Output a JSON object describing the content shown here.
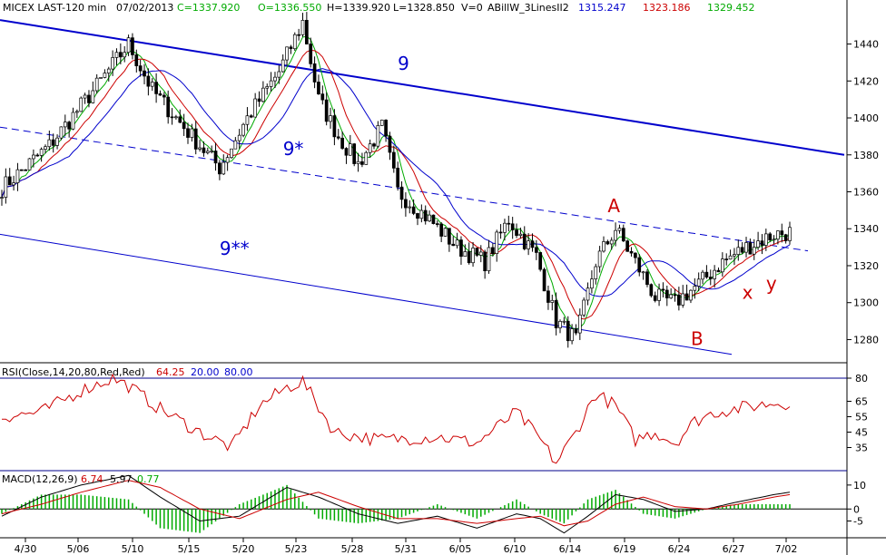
{
  "header": {
    "instrument": "MICEX LAST-120 min",
    "date": "07/02/2013",
    "close": "C=1337.920",
    "open": "O=1336.550",
    "high": "H=1339.920",
    "low": "L=1328.850",
    "volume": "V=0",
    "indicator": "ABillW_3LinesII2",
    "ind_blue": "1315.247",
    "ind_red": "1323.186",
    "ind_green": "1329.452"
  },
  "rsi_header": {
    "label": "RSI(Close,14,20,80,Red,Red)",
    "value": "64.25",
    "lower": "20.00",
    "upper": "80.00"
  },
  "macd_header": {
    "label": "MACD(12,26,9)",
    "v1": "6.74",
    "v2": "5.97",
    "v3": "0.77"
  },
  "colors": {
    "blue": "#0000cc",
    "red": "#cc0000",
    "green": "#00aa00",
    "grid": "#00008b"
  },
  "chart_data": [
    {
      "type": "candlestick",
      "ylim": [
        1265,
        1455
      ],
      "yticks": [
        "1280",
        "1300",
        "1320",
        "1340",
        "1360",
        "1380",
        "1400",
        "1420",
        "1440"
      ],
      "ytick_values": [
        1280,
        1300,
        1320,
        1340,
        1360,
        1380,
        1400,
        1420,
        1440
      ],
      "xticks": [
        "4/30",
        "5/06",
        "5/10",
        "5/15",
        "5/20",
        "5/23",
        "5/28",
        "5/31",
        "6/05",
        "6/10",
        "6/14",
        "6/19",
        "6/24",
        "6/27",
        "7/02"
      ],
      "bars": 200,
      "close_path": [
        [
          0,
          1362
        ],
        [
          12,
          1385
        ],
        [
          25,
          1420
        ],
        [
          32,
          1440
        ],
        [
          38,
          1415
        ],
        [
          48,
          1390
        ],
        [
          55,
          1373
        ],
        [
          62,
          1400
        ],
        [
          70,
          1425
        ],
        [
          76,
          1452
        ],
        [
          80,
          1410
        ],
        [
          85,
          1390
        ],
        [
          90,
          1375
        ],
        [
          96,
          1395
        ],
        [
          100,
          1360
        ],
        [
          108,
          1345
        ],
        [
          115,
          1330
        ],
        [
          122,
          1322
        ],
        [
          128,
          1345
        ],
        [
          135,
          1325
        ],
        [
          140,
          1290
        ],
        [
          145,
          1280
        ],
        [
          150,
          1322
        ],
        [
          155,
          1340
        ],
        [
          160,
          1322
        ],
        [
          165,
          1303
        ],
        [
          170,
          1300
        ],
        [
          176,
          1310
        ],
        [
          182,
          1322
        ],
        [
          188,
          1330
        ],
        [
          195,
          1337
        ],
        [
          199,
          1338
        ]
      ],
      "annotations": [
        {
          "text": "9",
          "x": 100,
          "y": 1426,
          "color": "#0000cc"
        },
        {
          "text": "9*",
          "x": 71,
          "y": 1380,
          "color": "#0000cc"
        },
        {
          "text": "9**",
          "x": 55,
          "y": 1326,
          "color": "#0000cc"
        },
        {
          "text": "A",
          "x": 153,
          "y": 1349,
          "color": "#cc0000"
        },
        {
          "text": "B",
          "x": 174,
          "y": 1277,
          "color": "#cc0000"
        },
        {
          "text": "x",
          "x": 187,
          "y": 1302,
          "color": "#cc0000"
        },
        {
          "text": "y",
          "x": 193,
          "y": 1307,
          "color": "#cc0000"
        }
      ]
    },
    {
      "type": "line",
      "name_ref": "RSI",
      "ylim": [
        20,
        90
      ],
      "yticks": [
        "35",
        "45",
        "55",
        "65",
        "80"
      ],
      "ytick_values": [
        35,
        45,
        55,
        65,
        80
      ],
      "levels": [
        20,
        80
      ],
      "x": [
        0,
        10,
        20,
        28,
        32,
        40,
        50,
        58,
        65,
        72,
        76,
        84,
        95,
        110,
        120,
        130,
        136,
        140,
        145,
        150,
        155,
        160,
        165,
        170,
        175,
        180,
        185,
        190,
        195,
        199
      ],
      "values": [
        55,
        58,
        72,
        80,
        75,
        60,
        45,
        35,
        62,
        74,
        78,
        45,
        40,
        42,
        38,
        58,
        40,
        25,
        45,
        70,
        62,
        40,
        45,
        38,
        52,
        58,
        60,
        62,
        64,
        64
      ]
    },
    {
      "type": "line",
      "name_ref": "MACD",
      "ylim": [
        -12,
        16
      ],
      "yticks": [
        "-5",
        "0",
        "10"
      ],
      "ytick_values": [
        -5,
        0,
        10
      ],
      "x": [
        0,
        10,
        20,
        32,
        40,
        50,
        60,
        72,
        80,
        90,
        100,
        110,
        120,
        130,
        136,
        142,
        148,
        155,
        162,
        170,
        178,
        186,
        195,
        199
      ],
      "macd": [
        -3,
        5,
        10,
        14,
        5,
        -5,
        -3,
        9,
        5,
        -2,
        -6,
        -3,
        -8,
        -2,
        -4,
        -10,
        -3,
        6,
        4,
        -1,
        0,
        3,
        6,
        7
      ],
      "signal": [
        -2,
        2,
        7,
        12,
        9,
        0,
        -4,
        4,
        7,
        1,
        -4,
        -4,
        -6,
        -4,
        -3,
        -7,
        -5,
        2,
        5,
        1,
        0,
        2,
        5,
        6
      ]
    }
  ]
}
